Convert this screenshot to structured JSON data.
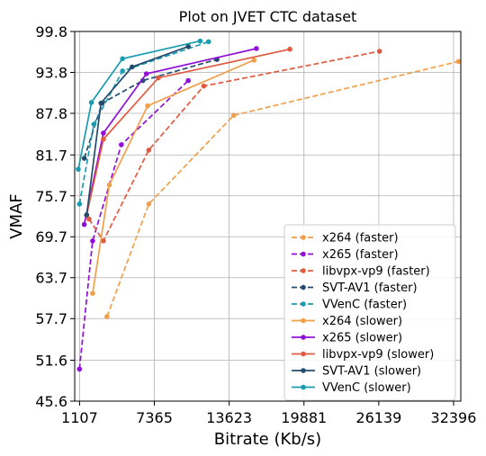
{
  "chart_data": {
    "type": "line",
    "title": "Plot on JVET CTC dataset",
    "xlabel": "Bitrate (Kb/s)",
    "ylabel": "VMAF",
    "xlim": [
      700,
      33000
    ],
    "ylim": [
      45.6,
      99.8
    ],
    "xticks": [
      1107,
      7365,
      13623,
      19881,
      26139,
      32396
    ],
    "xtick_labels": [
      "1107",
      "7365",
      "13623",
      "19881",
      "26139",
      "32396"
    ],
    "yticks": [
      45.6,
      51.6,
      57.7,
      63.7,
      69.7,
      75.7,
      81.7,
      87.8,
      93.8,
      99.8
    ],
    "ytick_labels": [
      "45.6",
      "51.6",
      "57.7",
      "63.7",
      "69.7",
      "75.7",
      "81.7",
      "87.8",
      "93.8",
      "99.8"
    ],
    "grid": true,
    "legend_position": "bottom-right",
    "series": [
      {
        "name": "x264 (faster)",
        "color": "#f0a04b",
        "dashed": true,
        "x": [
          3400,
          6900,
          14000,
          32800
        ],
        "y": [
          58.0,
          74.5,
          87.5,
          95.4
        ]
      },
      {
        "name": "x265 (faster)",
        "color": "#9010d8",
        "dashed": true,
        "x": [
          1100,
          2200,
          4600,
          10200
        ],
        "y": [
          50.3,
          69.1,
          83.2,
          92.6
        ]
      },
      {
        "name": "libvpx-vp9 (faster)",
        "color": "#e05a40",
        "dashed": true,
        "x": [
          1900,
          3100,
          6900,
          11500,
          26200
        ],
        "y": [
          72.3,
          69.1,
          82.4,
          91.8,
          96.9
        ]
      },
      {
        "name": "SVT-AV1 (faster)",
        "color": "#234c6e",
        "dashed": true,
        "x": [
          1500,
          3000,
          6400,
          12600
        ],
        "y": [
          81.2,
          89.3,
          92.6,
          95.7
        ]
      },
      {
        "name": "VVenC (faster)",
        "color": "#1a9cb0",
        "dashed": true,
        "x": [
          1100,
          2300,
          4700,
          11900
        ],
        "y": [
          74.5,
          86.2,
          94.0,
          98.3
        ]
      },
      {
        "name": "x264 (slower)",
        "color": "#f0a04b",
        "dashed": false,
        "x": [
          2200,
          3600,
          6800,
          15700
        ],
        "y": [
          61.4,
          77.3,
          88.9,
          95.6
        ]
      },
      {
        "name": "x265 (slower)",
        "color": "#9010d8",
        "dashed": false,
        "x": [
          1500,
          3100,
          6700,
          15900
        ],
        "y": [
          71.5,
          84.9,
          93.6,
          97.3
        ]
      },
      {
        "name": "libvpx-vp9 (slower)",
        "color": "#e05a40",
        "dashed": false,
        "x": [
          1700,
          3100,
          7700,
          18700
        ],
        "y": [
          72.9,
          84.0,
          93.0,
          97.2
        ]
      },
      {
        "name": "SVT-AV1 (slower)",
        "color": "#234c6e",
        "dashed": false,
        "x": [
          1700,
          2900,
          5500,
          10200
        ],
        "y": [
          72.9,
          89.3,
          94.6,
          97.6
        ]
      },
      {
        "name": "VVenC (slower)",
        "color": "#1a9cb0",
        "dashed": false,
        "x": [
          1000,
          2100,
          4700,
          11200
        ],
        "y": [
          79.6,
          89.4,
          95.8,
          98.4
        ]
      }
    ]
  }
}
